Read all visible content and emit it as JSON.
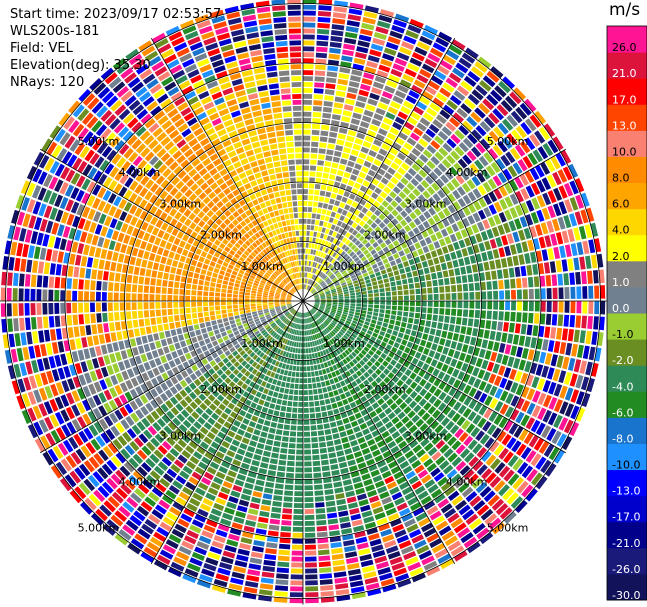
{
  "info": {
    "start_time": "Start time: 2023/09/17 02:53:57",
    "instrument": "WLS200s-181",
    "field": "Field: VEL",
    "elevation": "Elevation(deg): 35.30",
    "nrays": "NRays: 120"
  },
  "chart_data": {
    "type": "heatmap",
    "projection": "polar-ppi",
    "field": "VEL",
    "unit": "m/s",
    "n_rays": 120,
    "elevation_deg": 35.3,
    "range_rings_km": [
      1.0,
      2.0,
      3.0,
      4.0,
      5.0
    ],
    "ring_labels": [
      "1.00km",
      "2.00km",
      "3.00km",
      "4.00km",
      "5.00km"
    ],
    "max_range_km": 5.1,
    "colorbar": {
      "title": "m/s",
      "levels": [
        -30.0,
        -26.0,
        -21.0,
        -17.0,
        -13.0,
        -10.0,
        -8.0,
        -6.0,
        -4.0,
        -2.0,
        -1.0,
        0.0,
        1.0,
        2.0,
        4.0,
        6.0,
        8.0,
        10.0,
        13.0,
        17.0,
        21.0,
        26.0,
        30.0
      ],
      "tick_labels": [
        "-30.0",
        "-26.0",
        "-21.0",
        "-17.0",
        "-13.0",
        "-10.0",
        "-8.0",
        "-6.0",
        "-4.0",
        "-2.0",
        "-1.0",
        "0.0",
        "1.0",
        "2.0",
        "4.0",
        "6.0",
        "8.0",
        "10.0",
        "13.0",
        "17.0",
        "21.0",
        "26.0"
      ],
      "colors": [
        "#12125a",
        "#1a1a7a",
        "#00008b",
        "#0000cd",
        "#0000ff",
        "#1e90ff",
        "#1874cd",
        "#228b22",
        "#2e8b57",
        "#6b8e23",
        "#9acd32",
        "#708090",
        "#808080",
        "#ffff00",
        "#ffd700",
        "#ffa500",
        "#ff8c00",
        "#fa8072",
        "#ff4500",
        "#ff0000",
        "#dc143c",
        "#ff1493"
      ]
    },
    "sectors": [
      {
        "az_from": 270,
        "az_to": 330,
        "value": 8.0
      },
      {
        "az_from": 330,
        "az_to": 355,
        "value": 6.0
      },
      {
        "az_from": 355,
        "az_to": 40,
        "value": 2.0
      },
      {
        "az_from": 40,
        "az_to": 70,
        "value": 0.0
      },
      {
        "az_from": 70,
        "az_to": 90,
        "value": -2.0
      },
      {
        "az_from": 90,
        "az_to": 165,
        "value": -4.0
      },
      {
        "az_from": 165,
        "az_to": 200,
        "value": -3.0
      },
      {
        "az_from": 200,
        "az_to": 235,
        "value": -2.0
      },
      {
        "az_from": 235,
        "az_to": 258,
        "value": 0.5
      },
      {
        "az_from": 258,
        "az_to": 270,
        "value": 6.0
      }
    ]
  }
}
